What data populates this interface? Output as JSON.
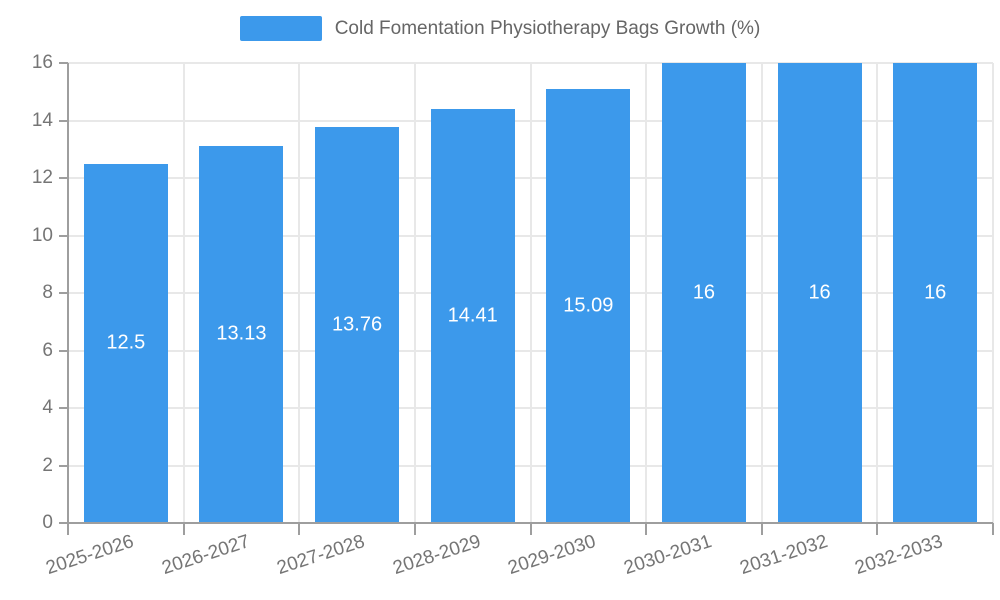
{
  "legend": {
    "label": "Cold Fomentation Physiotherapy Bags Growth (%)"
  },
  "chart_data": {
    "type": "bar",
    "title": "Cold Fomentation Physiotherapy Bags Growth (%)",
    "categories": [
      "2025-2026",
      "2026-2027",
      "2027-2028",
      "2028-2029",
      "2029-2030",
      "2030-2031",
      "2031-2032",
      "2032-2033"
    ],
    "values": [
      12.5,
      13.13,
      13.76,
      14.41,
      15.09,
      16,
      16,
      16
    ],
    "value_labels": [
      "12.5",
      "13.13",
      "13.76",
      "14.41",
      "15.09",
      "16",
      "16",
      "16"
    ],
    "xlabel": "",
    "ylabel": "",
    "ylim": [
      0,
      16
    ],
    "yticks": [
      0,
      2,
      4,
      6,
      8,
      10,
      12,
      14,
      16
    ],
    "grid": true,
    "legend_position": "top",
    "colors": {
      "bar": "#3c99eb",
      "value_label": "#ffffff",
      "axis_text": "#757575",
      "legend_text": "#666666",
      "gridline": "#e8e8e8",
      "axis_line": "#9e9e9e"
    }
  }
}
